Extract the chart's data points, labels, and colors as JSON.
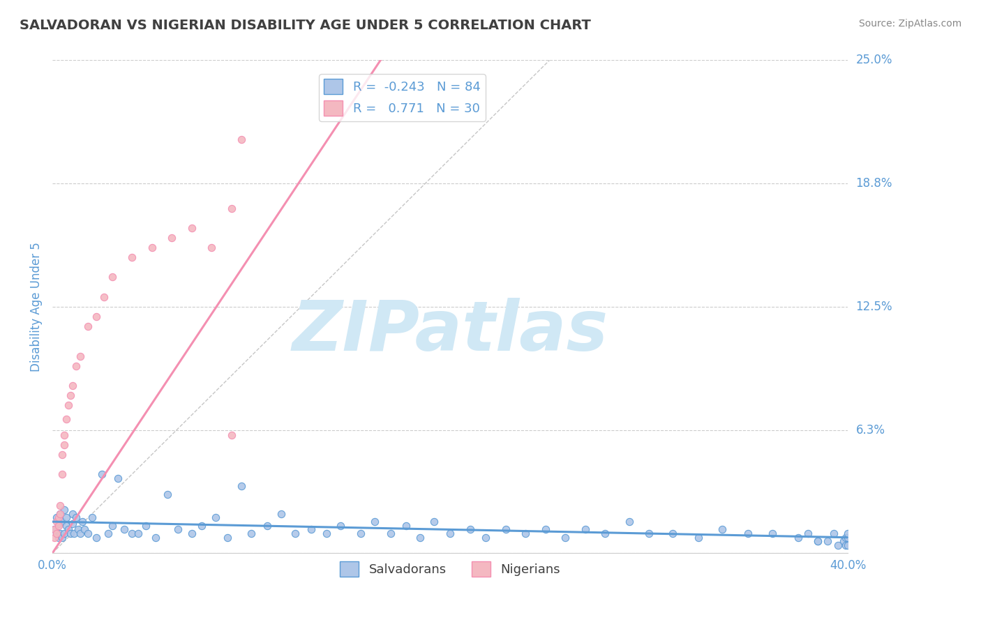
{
  "title": "SALVADORAN VS NIGERIAN DISABILITY AGE UNDER 5 CORRELATION CHART",
  "source": "Source: ZipAtlas.com",
  "xlabel_salvadoran": "Salvadorans",
  "xlabel_nigerian": "Nigerians",
  "ylabel": "Disability Age Under 5",
  "xlim": [
    0.0,
    0.4
  ],
  "ylim": [
    0.0,
    0.25
  ],
  "xtick_positions": [
    0.0,
    0.4
  ],
  "xticklabels": [
    "0.0%",
    "40.0%"
  ],
  "yticks": [
    0.0,
    0.0625,
    0.125,
    0.1875,
    0.25
  ],
  "yticklabels": [
    "",
    "6.3%",
    "12.5%",
    "18.8%",
    "25.0%"
  ],
  "grid_color": "#cccccc",
  "background_color": "#ffffff",
  "salvadoran_color": "#aec6e8",
  "nigerian_color": "#f4b8c1",
  "salvadoran_line_color": "#5b9bd5",
  "nigerian_line_color": "#f48fb1",
  "ref_line_color": "#b8b8b8",
  "R_salvadoran": -0.243,
  "N_salvadoran": 84,
  "R_nigerian": 0.771,
  "N_nigerian": 30,
  "watermark": "ZIPatlas",
  "watermark_color": "#d0e8f5",
  "title_color": "#404040",
  "axis_color": "#5b9bd5",
  "tick_color": "#5b9bd5",
  "nig_trend_x0": 0.0,
  "nig_trend_y0": 0.0,
  "nig_trend_x1": 0.165,
  "nig_trend_y1": 0.25,
  "sal_trend_x0": 0.0,
  "sal_trend_y0": 0.016,
  "sal_trend_x1": 0.4,
  "sal_trend_y1": 0.008,
  "salvadoran_scatter_x": [
    0.001,
    0.002,
    0.002,
    0.003,
    0.003,
    0.004,
    0.004,
    0.005,
    0.005,
    0.006,
    0.006,
    0.007,
    0.007,
    0.008,
    0.009,
    0.01,
    0.01,
    0.011,
    0.012,
    0.013,
    0.014,
    0.015,
    0.016,
    0.018,
    0.02,
    0.022,
    0.025,
    0.028,
    0.03,
    0.033,
    0.036,
    0.04,
    0.043,
    0.047,
    0.052,
    0.058,
    0.063,
    0.07,
    0.075,
    0.082,
    0.088,
    0.095,
    0.1,
    0.108,
    0.115,
    0.122,
    0.13,
    0.138,
    0.145,
    0.155,
    0.162,
    0.17,
    0.178,
    0.185,
    0.192,
    0.2,
    0.21,
    0.218,
    0.228,
    0.238,
    0.248,
    0.258,
    0.268,
    0.278,
    0.29,
    0.3,
    0.312,
    0.325,
    0.337,
    0.35,
    0.362,
    0.375,
    0.385,
    0.393,
    0.398,
    0.399,
    0.399,
    0.4,
    0.4,
    0.4,
    0.395,
    0.39,
    0.385,
    0.38
  ],
  "salvadoran_scatter_y": [
    0.012,
    0.01,
    0.018,
    0.008,
    0.015,
    0.02,
    0.01,
    0.016,
    0.008,
    0.022,
    0.01,
    0.014,
    0.018,
    0.012,
    0.01,
    0.02,
    0.015,
    0.01,
    0.018,
    0.012,
    0.01,
    0.016,
    0.012,
    0.01,
    0.018,
    0.008,
    0.04,
    0.01,
    0.014,
    0.038,
    0.012,
    0.01,
    0.01,
    0.014,
    0.008,
    0.03,
    0.012,
    0.01,
    0.014,
    0.018,
    0.008,
    0.034,
    0.01,
    0.014,
    0.02,
    0.01,
    0.012,
    0.01,
    0.014,
    0.01,
    0.016,
    0.01,
    0.014,
    0.008,
    0.016,
    0.01,
    0.012,
    0.008,
    0.012,
    0.01,
    0.012,
    0.008,
    0.012,
    0.01,
    0.016,
    0.01,
    0.01,
    0.008,
    0.012,
    0.01,
    0.01,
    0.008,
    0.006,
    0.01,
    0.006,
    0.004,
    0.008,
    0.004,
    0.008,
    0.01,
    0.004,
    0.006,
    0.006,
    0.01
  ],
  "nigerian_scatter_x": [
    0.001,
    0.001,
    0.002,
    0.002,
    0.003,
    0.003,
    0.004,
    0.004,
    0.005,
    0.005,
    0.006,
    0.006,
    0.007,
    0.008,
    0.009,
    0.01,
    0.012,
    0.014,
    0.018,
    0.022,
    0.026,
    0.03,
    0.04,
    0.05,
    0.06,
    0.07,
    0.08,
    0.09,
    0.095,
    0.09
  ],
  "nigerian_scatter_y": [
    0.008,
    0.012,
    0.01,
    0.016,
    0.014,
    0.018,
    0.02,
    0.024,
    0.04,
    0.05,
    0.055,
    0.06,
    0.068,
    0.075,
    0.08,
    0.085,
    0.095,
    0.1,
    0.115,
    0.12,
    0.13,
    0.14,
    0.15,
    0.155,
    0.16,
    0.165,
    0.155,
    0.175,
    0.21,
    0.06
  ]
}
